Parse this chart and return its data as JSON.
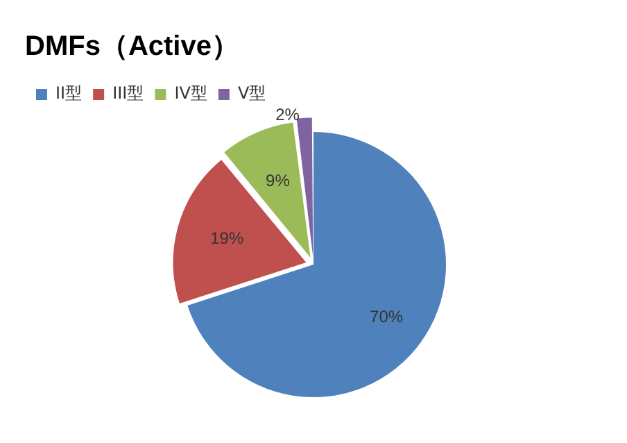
{
  "chart_data": {
    "type": "pie",
    "title": "DMFs（Active）",
    "categories": [
      "II型",
      "III型",
      "IV型",
      "V型"
    ],
    "values": [
      70,
      19,
      9,
      2
    ],
    "colors": [
      "#4f81bd",
      "#c0504d",
      "#9bbb59",
      "#8064a2"
    ],
    "value_labels": [
      "70%",
      "19%",
      "9%",
      "2%"
    ],
    "legend": "top"
  }
}
